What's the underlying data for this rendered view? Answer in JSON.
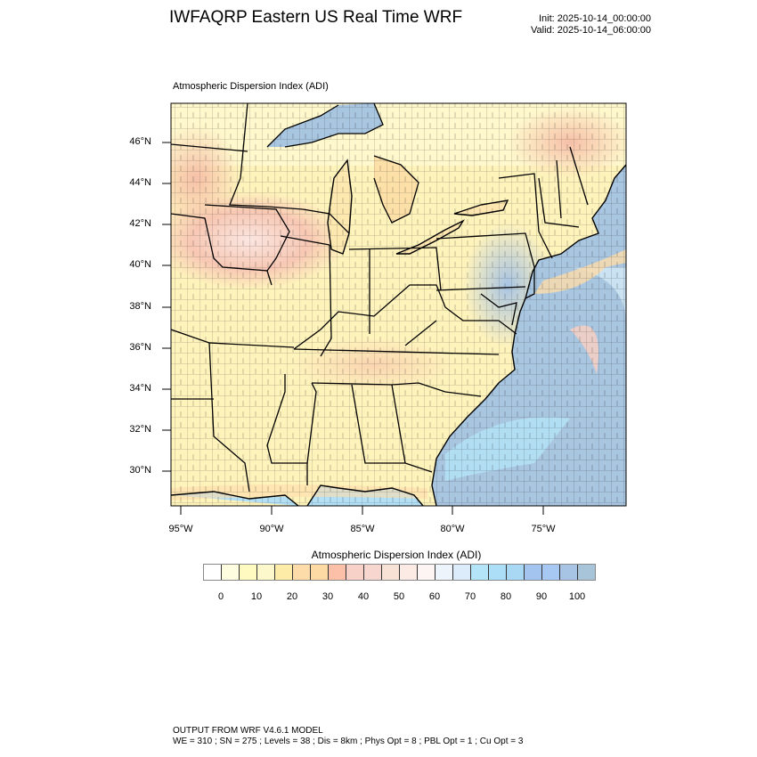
{
  "header": {
    "title": "IWFAQRP Eastern US Real Time WRF",
    "init": "Init: 2025-10-14_00:00:00",
    "valid": "Valid: 2025-10-14_06:00:00"
  },
  "map": {
    "subtitle": "Atmospheric Dispersion Index   (ADI)",
    "lat_labels": [
      "46°N",
      "44°N",
      "42°N",
      "40°N",
      "38°N",
      "36°N",
      "34°N",
      "32°N",
      "30°N"
    ],
    "lon_labels": [
      "95°W",
      "90°W",
      "85°W",
      "80°W",
      "75°W"
    ],
    "land_color": "#fff5c0",
    "ocean_color": "#a9c6e0"
  },
  "colorbar": {
    "title": "Atmospheric Dispersion Index  (ADI)",
    "labels": [
      "0",
      "10",
      "20",
      "30",
      "40",
      "50",
      "60",
      "70",
      "80",
      "90",
      "100"
    ],
    "colors": [
      "#ffffff",
      "#fffde0",
      "#fffbc0",
      "#fdf7cc",
      "#fdeca8",
      "#fddcaa",
      "#fdd9a4",
      "#fcbfa8",
      "#f7d0c8",
      "#f6d6ce",
      "#f8e2d6",
      "#fcebe4",
      "#fdf5f4",
      "#eef4fc",
      "#dcecfa",
      "#b4e4f8",
      "#acdef8",
      "#a8d8f4",
      "#a4c4f0",
      "#a8c8f4",
      "#a8c4e4",
      "#a8c4d8"
    ]
  },
  "footer": {
    "line1": "OUTPUT FROM WRF V4.6.1 MODEL",
    "line2": "WE = 310 ; SN = 275 ; Levels = 38 ; Dis = 8km ; Phys Opt = 8 ; PBL Opt = 1 ; Cu Opt = 3"
  }
}
